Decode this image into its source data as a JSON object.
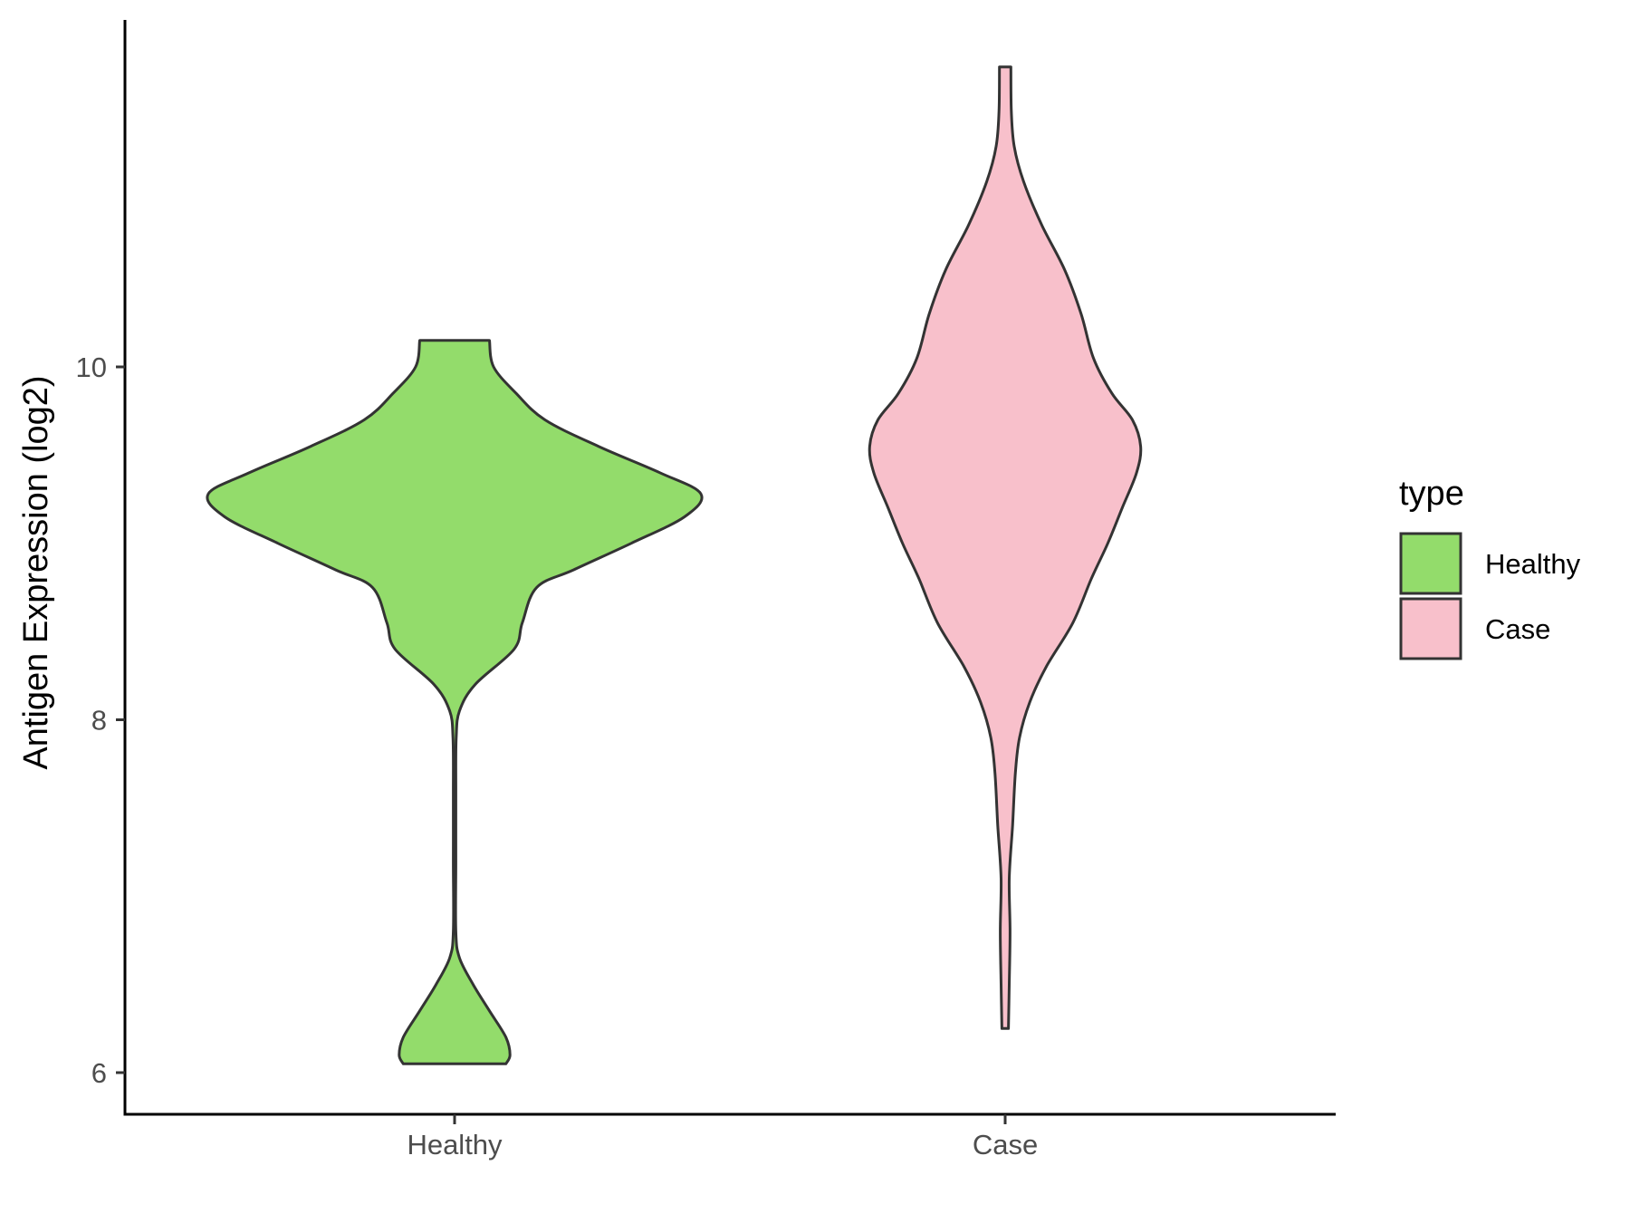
{
  "chart_data": {
    "type": "violin",
    "title": "",
    "xlabel": "",
    "ylabel": "Antigen Expression (log2)",
    "ylim": [
      5.8,
      12.0
    ],
    "y_ticks": [
      6,
      8,
      10
    ],
    "y_tick_labels": [
      "6",
      "8",
      "10"
    ],
    "categories": [
      "Healthy",
      "Case"
    ],
    "legend": {
      "title": "type",
      "position": "right",
      "entries": [
        "Healthy",
        "Case"
      ]
    },
    "grid": false,
    "series": [
      {
        "name": "Healthy",
        "color": "#93dc6b",
        "y_range": [
          6.05,
          10.15
        ],
        "density_profile": [
          [
            6.05,
            0.125
          ],
          [
            6.1,
            0.135
          ],
          [
            6.2,
            0.125
          ],
          [
            6.35,
            0.085
          ],
          [
            6.5,
            0.045
          ],
          [
            6.65,
            0.012
          ],
          [
            6.8,
            0.003
          ],
          [
            7.2,
            0.003
          ],
          [
            7.6,
            0.003
          ],
          [
            7.9,
            0.004
          ],
          [
            8.05,
            0.012
          ],
          [
            8.2,
            0.05
          ],
          [
            8.4,
            0.145
          ],
          [
            8.55,
            0.165
          ],
          [
            8.75,
            0.2
          ],
          [
            8.85,
            0.29
          ],
          [
            9.0,
            0.43
          ],
          [
            9.15,
            0.56
          ],
          [
            9.28,
            0.6
          ],
          [
            9.4,
            0.5
          ],
          [
            9.55,
            0.35
          ],
          [
            9.7,
            0.22
          ],
          [
            9.85,
            0.15
          ],
          [
            10.0,
            0.095
          ],
          [
            10.15,
            0.085
          ]
        ]
      },
      {
        "name": "Case",
        "color": "#f8c0cb",
        "y_range": [
          6.25,
          11.7
        ],
        "density_profile": [
          [
            6.25,
            0.008
          ],
          [
            6.5,
            0.01
          ],
          [
            6.8,
            0.012
          ],
          [
            7.1,
            0.01
          ],
          [
            7.4,
            0.018
          ],
          [
            7.7,
            0.025
          ],
          [
            7.9,
            0.035
          ],
          [
            8.1,
            0.06
          ],
          [
            8.3,
            0.1
          ],
          [
            8.55,
            0.165
          ],
          [
            8.8,
            0.21
          ],
          [
            9.0,
            0.25
          ],
          [
            9.2,
            0.285
          ],
          [
            9.4,
            0.32
          ],
          [
            9.55,
            0.33
          ],
          [
            9.7,
            0.31
          ],
          [
            9.85,
            0.26
          ],
          [
            10.05,
            0.215
          ],
          [
            10.3,
            0.185
          ],
          [
            10.55,
            0.145
          ],
          [
            10.8,
            0.09
          ],
          [
            11.05,
            0.045
          ],
          [
            11.25,
            0.022
          ],
          [
            11.45,
            0.015
          ],
          [
            11.7,
            0.014
          ]
        ]
      }
    ]
  }
}
